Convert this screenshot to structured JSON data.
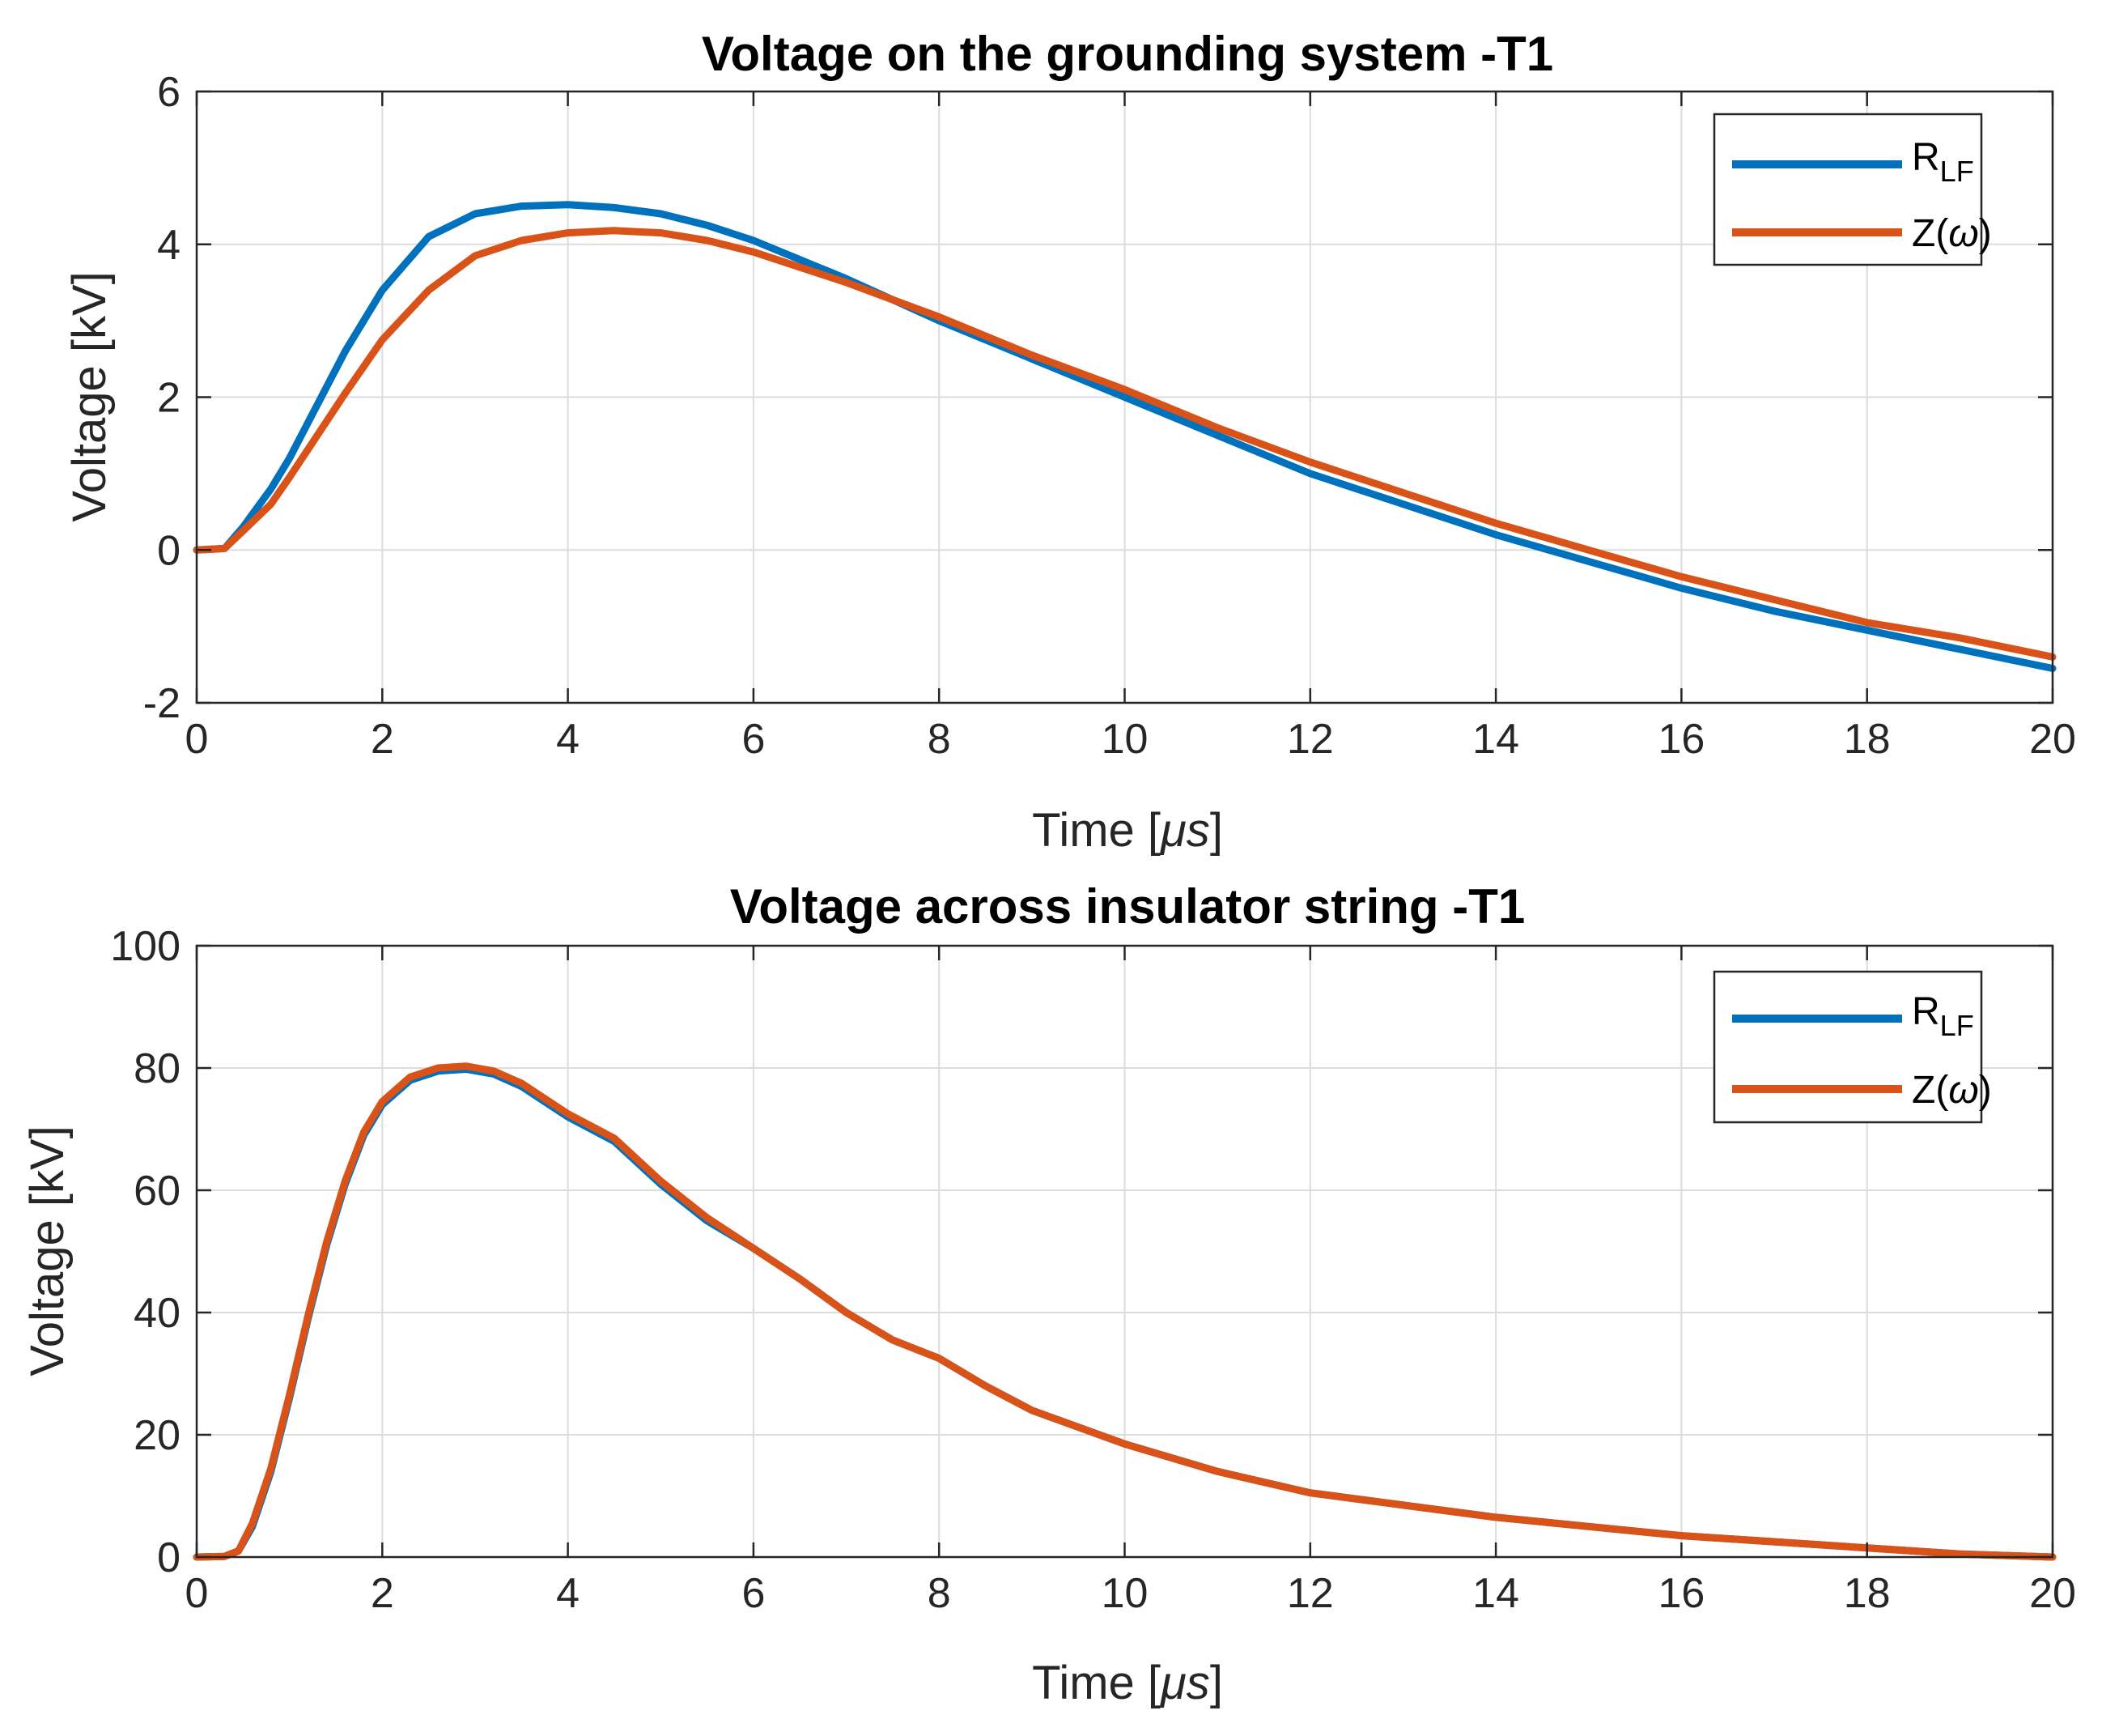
{
  "chart_data": [
    {
      "type": "line",
      "title": "Voltage on the grounding system -T1",
      "xlabel": "Time [",
      "xlabel_unit": "μs",
      "xlabel_end": "]",
      "ylabel": "Voltage [kV]",
      "xlim": [
        0,
        20
      ],
      "ylim": [
        -2,
        6
      ],
      "xticks": [
        0,
        2,
        4,
        6,
        8,
        10,
        12,
        14,
        16,
        18,
        20
      ],
      "xtick_labels": [
        "0",
        "2",
        "4",
        "6",
        "8",
        "10",
        "12",
        "14",
        "16",
        "18",
        "20"
      ],
      "yticks": [
        -2,
        0,
        2,
        4,
        6
      ],
      "ytick_labels": [
        "-2",
        "0",
        "2",
        "4",
        "6"
      ],
      "grid": true,
      "legend_position": "top-right",
      "series": [
        {
          "name": "R",
          "name_sub": "LF",
          "color": "#0072bd",
          "x": [
            0,
            0.3,
            0.5,
            0.8,
            1.0,
            1.3,
            1.6,
            2.0,
            2.5,
            3.0,
            3.5,
            4.0,
            4.5,
            5.0,
            5.5,
            6.0,
            7.0,
            8.0,
            9.0,
            10.0,
            11.0,
            12.0,
            13.0,
            14.0,
            15.0,
            16.0,
            17.0,
            18.0,
            19.0,
            20.0
          ],
          "y": [
            0,
            0.02,
            0.3,
            0.8,
            1.2,
            1.9,
            2.6,
            3.4,
            4.1,
            4.4,
            4.5,
            4.52,
            4.48,
            4.4,
            4.25,
            4.05,
            3.55,
            3.0,
            2.5,
            2.0,
            1.5,
            1.0,
            0.6,
            0.2,
            -0.15,
            -0.5,
            -0.8,
            -1.05,
            -1.3,
            -1.55
          ]
        },
        {
          "name": "Z(",
          "name_sym": "ω",
          "name_end": ")",
          "color": "#d95319",
          "x": [
            0,
            0.3,
            0.5,
            0.8,
            1.0,
            1.3,
            1.6,
            2.0,
            2.5,
            3.0,
            3.5,
            4.0,
            4.5,
            5.0,
            5.5,
            6.0,
            7.0,
            8.0,
            9.0,
            10.0,
            11.0,
            12.0,
            13.0,
            14.0,
            15.0,
            16.0,
            17.0,
            18.0,
            19.0,
            20.0
          ],
          "y": [
            0,
            0.02,
            0.25,
            0.6,
            0.95,
            1.5,
            2.05,
            2.75,
            3.4,
            3.85,
            4.05,
            4.15,
            4.18,
            4.15,
            4.05,
            3.9,
            3.5,
            3.05,
            2.55,
            2.1,
            1.6,
            1.15,
            0.75,
            0.35,
            0.0,
            -0.35,
            -0.65,
            -0.95,
            -1.15,
            -1.4
          ]
        }
      ]
    },
    {
      "type": "line",
      "title": "Voltage across insulator string -T1",
      "xlabel": "Time [",
      "xlabel_unit": "μs",
      "xlabel_end": "]",
      "ylabel": "Voltage [kV]",
      "xlim": [
        0,
        20
      ],
      "ylim": [
        0,
        100
      ],
      "xticks": [
        0,
        2,
        4,
        6,
        8,
        10,
        12,
        14,
        16,
        18,
        20
      ],
      "xtick_labels": [
        "0",
        "2",
        "4",
        "6",
        "8",
        "10",
        "12",
        "14",
        "16",
        "18",
        "20"
      ],
      "yticks": [
        0,
        20,
        40,
        60,
        80,
        100
      ],
      "ytick_labels": [
        "0",
        "20",
        "40",
        "60",
        "80",
        "100"
      ],
      "grid": true,
      "legend_position": "top-right",
      "series": [
        {
          "name": "R",
          "name_sub": "LF",
          "color": "#0072bd",
          "x": [
            0,
            0.3,
            0.45,
            0.6,
            0.8,
            1.0,
            1.2,
            1.4,
            1.6,
            1.8,
            2.0,
            2.3,
            2.6,
            2.9,
            3.2,
            3.5,
            4.0,
            4.5,
            5.0,
            5.5,
            6.0,
            6.5,
            7.0,
            7.5,
            8.0,
            8.5,
            9.0,
            10.0,
            11.0,
            12.0,
            13.0,
            14.0,
            15.0,
            16.0,
            17.0,
            18.0,
            19.0,
            20.0
          ],
          "y": [
            0,
            0.1,
            1,
            5,
            14,
            26,
            39,
            51,
            61,
            69,
            74,
            78,
            79.5,
            79.8,
            79,
            77,
            72,
            68,
            61,
            55,
            50.5,
            45.5,
            40,
            35.5,
            32.5,
            28,
            24,
            18.5,
            14,
            10.5,
            8.5,
            6.5,
            5,
            3.5,
            2.5,
            1.5,
            0.5,
            0
          ]
        },
        {
          "name": "Z(",
          "name_sym": "ω",
          "name_end": ")",
          "color": "#d95319",
          "x": [
            0,
            0.3,
            0.45,
            0.6,
            0.8,
            1.0,
            1.2,
            1.4,
            1.6,
            1.8,
            2.0,
            2.3,
            2.6,
            2.9,
            3.2,
            3.5,
            4.0,
            4.5,
            5.0,
            5.5,
            6.0,
            6.5,
            7.0,
            7.5,
            8.0,
            8.5,
            9.0,
            10.0,
            11.0,
            12.0,
            13.0,
            14.0,
            15.0,
            16.0,
            17.0,
            18.0,
            19.0,
            20.0
          ],
          "y": [
            0,
            0.1,
            1,
            5.5,
            14.5,
            26.5,
            39.5,
            51.5,
            61.5,
            69.5,
            74.5,
            78.5,
            80,
            80.3,
            79.5,
            77.5,
            72.5,
            68.5,
            61.5,
            55.5,
            50.5,
            45.5,
            40,
            35.5,
            32.5,
            28,
            24,
            18.5,
            14,
            10.5,
            8.5,
            6.5,
            5,
            3.5,
            2.5,
            1.5,
            0.5,
            0
          ]
        }
      ]
    }
  ]
}
